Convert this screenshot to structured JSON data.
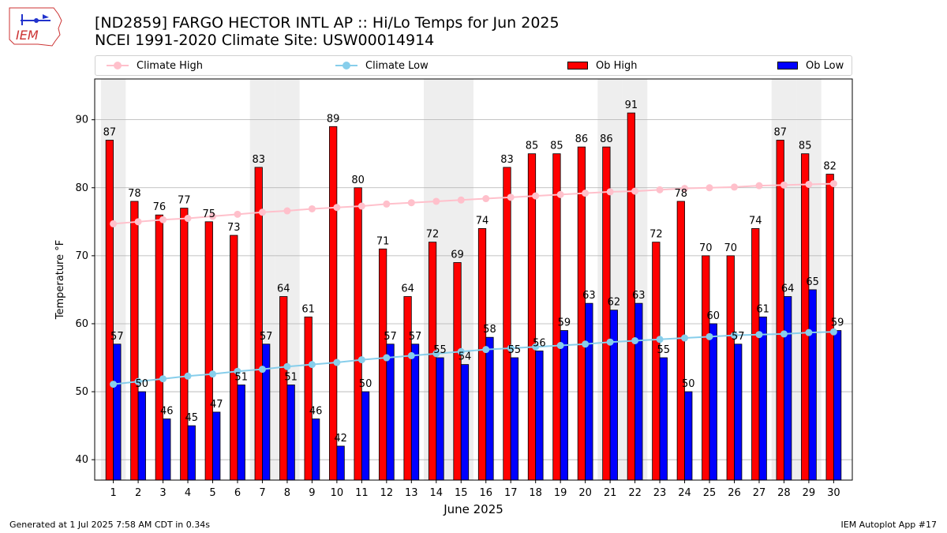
{
  "title_line1": "[ND2859] FARGO HECTOR INTL AP :: Hi/Lo Temps for Jun 2025",
  "title_line2": "NCEI 1991-2020 Climate Site: USW00014914",
  "logo_text": "IEM",
  "footer_left": "Generated at 1 Jul 2025 7:58 AM CDT in 0.34s",
  "footer_right": "IEM Autoplot App #17",
  "legend": {
    "climate_high": "Climate High",
    "climate_low": "Climate Low",
    "ob_high": "Ob High",
    "ob_low": "Ob Low"
  },
  "colors": {
    "ob_high": "#ff0000",
    "ob_low": "#0000ff",
    "climate_high": "#ffc0cb",
    "climate_low": "#87ceeb",
    "weekend_shade": "#eeeeee",
    "grid": "#b0b0b0"
  },
  "chart_data": {
    "type": "bar",
    "xlabel": "June 2025",
    "ylabel": "Temperature °F",
    "ylim": [
      37,
      96
    ],
    "yticks": [
      40,
      50,
      60,
      70,
      80,
      90
    ],
    "grid": true,
    "legend_position": "top",
    "categories": [
      "1",
      "2",
      "3",
      "4",
      "5",
      "6",
      "7",
      "8",
      "9",
      "10",
      "11",
      "12",
      "13",
      "14",
      "15",
      "16",
      "17",
      "18",
      "19",
      "20",
      "21",
      "22",
      "23",
      "24",
      "25",
      "26",
      "27",
      "28",
      "29",
      "30"
    ],
    "shaded_days": [
      1,
      7,
      8,
      14,
      15,
      21,
      22,
      28,
      29
    ],
    "series": [
      {
        "name": "Ob High",
        "kind": "bar",
        "values": [
          87,
          78,
          76,
          77,
          75,
          73,
          83,
          64,
          61,
          89,
          80,
          71,
          64,
          72,
          69,
          74,
          83,
          85,
          85,
          86,
          86,
          91,
          72,
          78,
          70,
          70,
          74,
          87,
          85,
          82
        ]
      },
      {
        "name": "Ob Low",
        "kind": "bar",
        "values": [
          57,
          50,
          46,
          45,
          47,
          51,
          57,
          51,
          46,
          42,
          50,
          57,
          57,
          55,
          54,
          58,
          55,
          56,
          59,
          63,
          62,
          63,
          55,
          50,
          60,
          57,
          61,
          64,
          65,
          59
        ]
      },
      {
        "name": "Climate High",
        "kind": "line",
        "values": [
          74.7,
          75.0,
          75.3,
          75.5,
          75.8,
          76.1,
          76.4,
          76.6,
          76.9,
          77.1,
          77.3,
          77.6,
          77.8,
          78.0,
          78.2,
          78.4,
          78.6,
          78.8,
          79.0,
          79.2,
          79.4,
          79.5,
          79.7,
          79.9,
          80.0,
          80.1,
          80.3,
          80.4,
          80.5,
          80.6
        ]
      },
      {
        "name": "Climate Low",
        "kind": "line",
        "values": [
          51.1,
          51.5,
          51.9,
          52.3,
          52.6,
          53.0,
          53.3,
          53.7,
          54.0,
          54.3,
          54.7,
          55.0,
          55.3,
          55.6,
          55.9,
          56.2,
          56.4,
          56.6,
          56.8,
          57.0,
          57.3,
          57.5,
          57.7,
          57.9,
          58.1,
          58.3,
          58.4,
          58.5,
          58.7,
          58.8
        ]
      }
    ]
  }
}
